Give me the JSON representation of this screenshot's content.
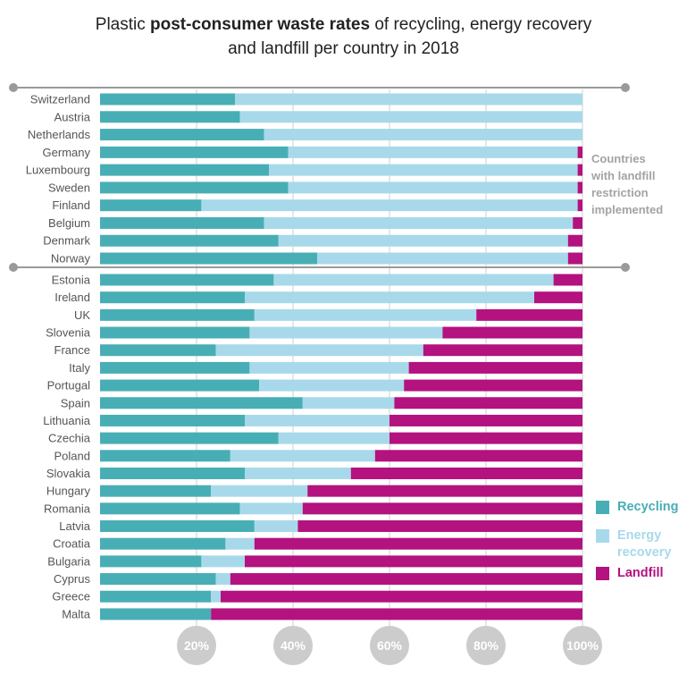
{
  "title": {
    "part1": "Plastic ",
    "bold": "post-consumer waste rates",
    "part2": " of recycling, energy recovery",
    "line2": "and landfill per country in 2018"
  },
  "group_label": {
    "line1": "Countries",
    "line2": "with landfill",
    "line3": "restriction",
    "line4": "implemented"
  },
  "legend": {
    "recycling": "Recycling",
    "energy_line1": "Energy",
    "energy_line2": "recovery",
    "landfill": "Landfill"
  },
  "colors": {
    "recycling": "#48aeb5",
    "energy_recovery": "#a8d9ea",
    "landfill": "#b3127f",
    "grid": "#cfcfcf",
    "separator": "#9a9a9a",
    "tick_circle": "#cccccc"
  },
  "chart_data": {
    "type": "bar",
    "orientation": "horizontal",
    "stacked": true,
    "title": "Plastic post-consumer waste rates of recycling, energy recovery and landfill per country in 2018",
    "xlim": [
      0,
      100
    ],
    "x_ticks": [
      "20%",
      "40%",
      "60%",
      "80%",
      "100%"
    ],
    "grid": true,
    "legend_position": "right",
    "categories": [
      "Switzerland",
      "Austria",
      "Netherlands",
      "Germany",
      "Luxembourg",
      "Sweden",
      "Finland",
      "Belgium",
      "Denmark",
      "Norway",
      "Estonia",
      "Ireland",
      "UK",
      "Slovenia",
      "France",
      "Italy",
      "Portugal",
      "Spain",
      "Lithuania",
      "Czechia",
      "Poland",
      "Slovakia",
      "Hungary",
      "Romania",
      "Latvia",
      "Croatia",
      "Bulgaria",
      "Cyprus",
      "Greece",
      "Malta"
    ],
    "series": [
      {
        "name": "Recycling",
        "values": [
          28,
          29,
          34,
          39,
          35,
          39,
          21,
          34,
          37,
          45,
          36,
          30,
          32,
          31,
          24,
          31,
          33,
          42,
          30,
          37,
          27,
          30,
          23,
          29,
          32,
          26,
          21,
          24,
          23,
          23
        ]
      },
      {
        "name": "Energy recovery",
        "values": [
          72,
          71,
          66,
          60,
          64,
          60,
          78,
          64,
          60,
          52,
          58,
          60,
          46,
          40,
          43,
          33,
          30,
          19,
          30,
          23,
          30,
          22,
          20,
          13,
          9,
          6,
          9,
          3,
          2,
          0
        ]
      },
      {
        "name": "Landfill",
        "values": [
          0,
          0,
          0,
          1,
          1,
          1,
          1,
          2,
          3,
          3,
          6,
          10,
          22,
          29,
          33,
          36,
          37,
          39,
          40,
          40,
          43,
          48,
          57,
          58,
          59,
          68,
          70,
          73,
          75,
          77
        ]
      }
    ],
    "groups": [
      {
        "label": "Countries with landfill restriction implemented",
        "categories": [
          "Switzerland",
          "Austria",
          "Netherlands",
          "Germany",
          "Luxembourg",
          "Sweden",
          "Finland",
          "Belgium",
          "Denmark",
          "Norway"
        ]
      }
    ]
  }
}
